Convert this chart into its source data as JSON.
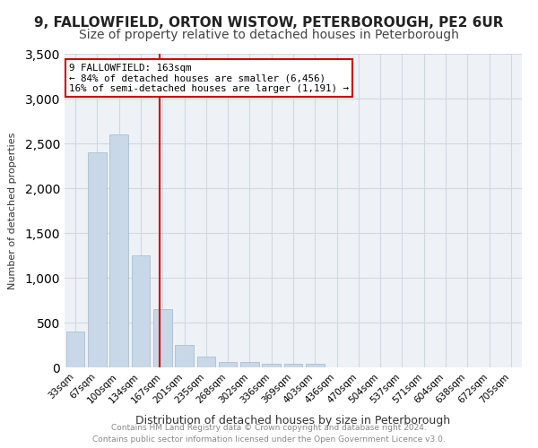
{
  "title_line1": "9, FALLOWFIELD, ORTON WISTOW, PETERBOROUGH, PE2 6UR",
  "title_line2": "Size of property relative to detached houses in Peterborough",
  "xlabel": "Distribution of detached houses by size in Peterborough",
  "ylabel": "Number of detached properties",
  "categories": [
    "33sqm",
    "67sqm",
    "100sqm",
    "134sqm",
    "167sqm",
    "201sqm",
    "235sqm",
    "268sqm",
    "302sqm",
    "336sqm",
    "369sqm",
    "403sqm",
    "436sqm",
    "470sqm",
    "504sqm",
    "537sqm",
    "571sqm",
    "604sqm",
    "638sqm",
    "672sqm",
    "705sqm"
  ],
  "values": [
    400,
    2400,
    2600,
    1250,
    650,
    250,
    120,
    60,
    60,
    40,
    40,
    40,
    0,
    0,
    0,
    0,
    0,
    0,
    0,
    0,
    0
  ],
  "bar_color": "#c8d8e8",
  "bar_edge_color": "#a0b8cc",
  "vline_x": 4,
  "vline_color": "#cc0000",
  "annotation_text": "9 FALLOWFIELD: 163sqm\n← 84% of detached houses are smaller (6,456)\n16% of semi-detached houses are larger (1,191) →",
  "annotation_box_color": "#cc0000",
  "ylim": [
    0,
    3500
  ],
  "yticks": [
    0,
    500,
    1000,
    1500,
    2000,
    2500,
    3000,
    3500
  ],
  "footer_line1": "Contains HM Land Registry data © Crown copyright and database right 2024.",
  "footer_line2": "Contains public sector information licensed under the Open Government Licence v3.0.",
  "background_color": "#ffffff",
  "grid_color": "#d0d8e0",
  "title_fontsize": 11,
  "subtitle_fontsize": 10
}
